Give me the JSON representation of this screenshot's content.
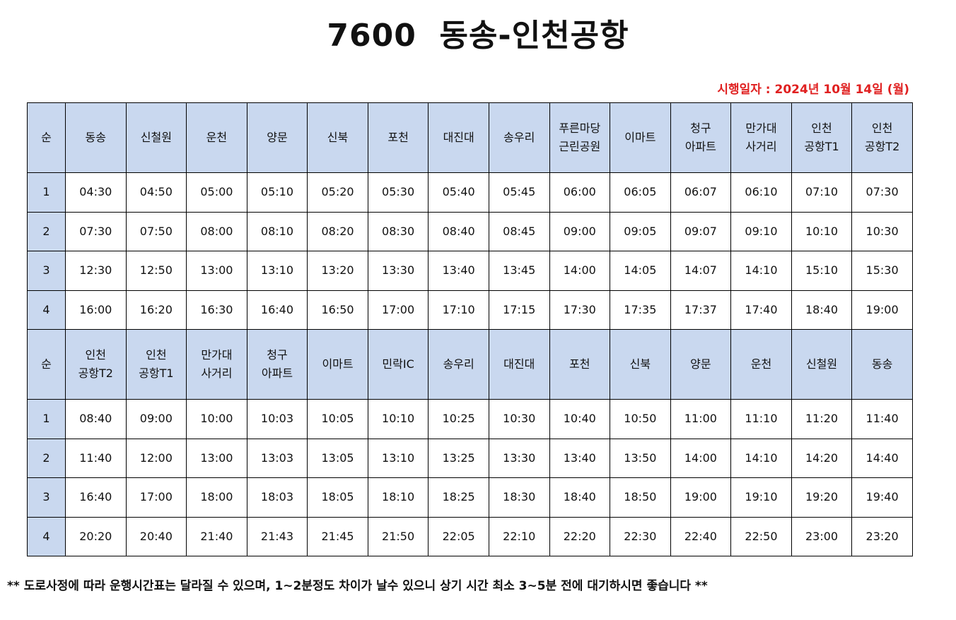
{
  "header": {
    "title": "7600  동송-인천공항",
    "date": "시행일자 : 2024년 10월 14일 (월)"
  },
  "tables": [
    {
      "header": [
        "순",
        "동송",
        "신철원",
        "운천",
        "양문",
        "신북",
        "포천",
        "대진대",
        "송우리",
        "푸른마당\n근린공원",
        "이마트",
        "청구\n아파트",
        "만가대\n사거리",
        "인천\n공항T1",
        "인천\n공항T2"
      ],
      "rows": [
        [
          "1",
          "04:30",
          "04:50",
          "05:00",
          "05:10",
          "05:20",
          "05:30",
          "05:40",
          "05:45",
          "06:00",
          "06:05",
          "06:07",
          "06:10",
          "07:10",
          "07:30"
        ],
        [
          "2",
          "07:30",
          "07:50",
          "08:00",
          "08:10",
          "08:20",
          "08:30",
          "08:40",
          "08:45",
          "09:00",
          "09:05",
          "09:07",
          "09:10",
          "10:10",
          "10:30"
        ],
        [
          "3",
          "12:30",
          "12:50",
          "13:00",
          "13:10",
          "13:20",
          "13:30",
          "13:40",
          "13:45",
          "14:00",
          "14:05",
          "14:07",
          "14:10",
          "15:10",
          "15:30"
        ],
        [
          "4",
          "16:00",
          "16:20",
          "16:30",
          "16:40",
          "16:50",
          "17:00",
          "17:10",
          "17:15",
          "17:30",
          "17:35",
          "17:37",
          "17:40",
          "18:40",
          "19:00"
        ]
      ]
    },
    {
      "header": [
        "순",
        "인천\n공항T2",
        "인천\n공항T1",
        "만가대\n사거리",
        "청구\n아파트",
        "이마트",
        "민락IC",
        "송우리",
        "대진대",
        "포천",
        "신북",
        "양문",
        "운천",
        "신철원",
        "동송"
      ],
      "rows": [
        [
          "1",
          "08:40",
          "09:00",
          "10:00",
          "10:03",
          "10:05",
          "10:10",
          "10:25",
          "10:30",
          "10:40",
          "10:50",
          "11:00",
          "11:10",
          "11:20",
          "11:40"
        ],
        [
          "2",
          "11:40",
          "12:00",
          "13:00",
          "13:03",
          "13:05",
          "13:10",
          "13:25",
          "13:30",
          "13:40",
          "13:50",
          "14:00",
          "14:10",
          "14:20",
          "14:40"
        ],
        [
          "3",
          "16:40",
          "17:00",
          "18:00",
          "18:03",
          "18:05",
          "18:10",
          "18:25",
          "18:30",
          "18:40",
          "18:50",
          "19:00",
          "19:10",
          "19:20",
          "19:40"
        ],
        [
          "4",
          "20:20",
          "20:40",
          "21:40",
          "21:43",
          "21:45",
          "21:50",
          "22:05",
          "22:10",
          "22:20",
          "22:30",
          "22:40",
          "22:50",
          "23:00",
          "23:20"
        ]
      ]
    }
  ],
  "footer": {
    "note": "** 도로사정에 따라 운행시간표는 달라질 수 있으며, 1~2분정도 차이가 날수 있으니 상기 시간 최소 3~5분 전에 대기하시면 좋습니다 **"
  }
}
